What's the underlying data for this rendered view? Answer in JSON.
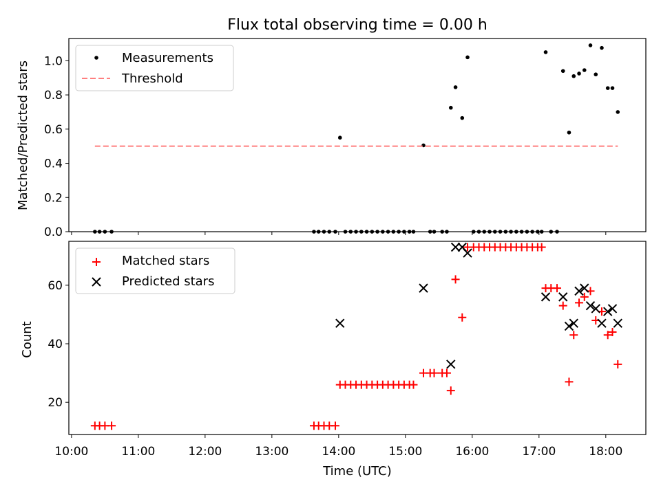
{
  "figure": {
    "title": "Flux total observing time = 0.00 h",
    "xlabel": "Time (UTC)",
    "xticks": [
      {
        "t": 10.0,
        "label": "10:00"
      },
      {
        "t": 11.0,
        "label": "11:00"
      },
      {
        "t": 12.0,
        "label": "12:00"
      },
      {
        "t": 13.0,
        "label": "13:00"
      },
      {
        "t": 14.0,
        "label": "14:00"
      },
      {
        "t": 15.0,
        "label": "15:00"
      },
      {
        "t": 16.0,
        "label": "16:00"
      },
      {
        "t": 17.0,
        "label": "17:00"
      },
      {
        "t": 18.0,
        "label": "18:00"
      }
    ]
  },
  "chart_data": [
    {
      "type": "scatter",
      "ylabel": "Matched/Predicted stars",
      "xlim": [
        9.96,
        18.6
      ],
      "ylim": [
        0,
        1.13
      ],
      "yticks": [
        {
          "v": 0.0,
          "label": "0.0"
        },
        {
          "v": 0.2,
          "label": "0.2"
        },
        {
          "v": 0.4,
          "label": "0.4"
        },
        {
          "v": 0.6,
          "label": "0.6"
        },
        {
          "v": 0.8,
          "label": "0.8"
        },
        {
          "v": 1.0,
          "label": "1.0"
        }
      ],
      "legend_position": "top-left",
      "series": [
        {
          "name": "Measurements",
          "marker": "dot",
          "color": "#000000",
          "x": [
            10.35,
            10.42,
            10.5,
            10.6,
            13.63,
            13.7,
            13.78,
            13.86,
            13.95,
            14.02,
            14.1,
            14.18,
            14.26,
            14.34,
            14.42,
            14.5,
            14.58,
            14.66,
            14.74,
            14.82,
            14.9,
            14.98,
            15.06,
            15.12,
            15.27,
            15.37,
            15.43,
            15.55,
            15.62,
            15.68,
            15.75,
            15.85,
            15.93,
            16.02,
            16.1,
            16.18,
            16.26,
            16.34,
            16.42,
            16.5,
            16.58,
            16.66,
            16.74,
            16.82,
            16.9,
            16.98,
            17.04,
            17.1,
            17.18,
            17.27,
            17.36,
            17.45,
            17.52,
            17.6,
            17.68,
            17.77,
            17.85,
            17.94,
            18.03,
            18.1,
            18.18
          ],
          "y": [
            0,
            0,
            0,
            0,
            0,
            0,
            0,
            0,
            0,
            0.55,
            0,
            0,
            0,
            0,
            0,
            0,
            0,
            0,
            0,
            0,
            0,
            0,
            0,
            0,
            0.505,
            0,
            0,
            0,
            0,
            0.725,
            0.845,
            0.665,
            1.02,
            0,
            0,
            0,
            0,
            0,
            0,
            0,
            0,
            0,
            0,
            0,
            0,
            0,
            0,
            1.05,
            0,
            0,
            0.94,
            0.58,
            0.91,
            0.925,
            0.945,
            1.09,
            0.92,
            1.075,
            0.84,
            0.84,
            0.7
          ]
        },
        {
          "name": "Threshold",
          "line_style": "dashed",
          "color": "#ff7f7f",
          "x": [
            10.35,
            18.18
          ],
          "y": [
            0.5,
            0.5
          ]
        }
      ]
    },
    {
      "type": "scatter",
      "ylabel": "Count",
      "xlim": [
        9.96,
        18.6
      ],
      "ylim": [
        9,
        75
      ],
      "yticks": [
        {
          "v": 20,
          "label": "20"
        },
        {
          "v": 40,
          "label": "40"
        },
        {
          "v": 60,
          "label": "60"
        }
      ],
      "legend_position": "top-left",
      "series": [
        {
          "name": "Matched stars",
          "marker": "plus",
          "color": "#ff0000",
          "x": [
            10.35,
            10.42,
            10.5,
            10.6,
            13.63,
            13.7,
            13.78,
            13.86,
            13.95,
            14.02,
            14.1,
            14.18,
            14.26,
            14.34,
            14.42,
            14.5,
            14.58,
            14.66,
            14.74,
            14.82,
            14.9,
            14.98,
            15.06,
            15.12,
            15.27,
            15.37,
            15.43,
            15.55,
            15.62,
            15.68,
            15.75,
            15.85,
            15.93,
            16.02,
            16.1,
            16.18,
            16.26,
            16.34,
            16.42,
            16.5,
            16.58,
            16.66,
            16.74,
            16.82,
            16.9,
            16.98,
            17.04,
            17.1,
            17.18,
            17.27,
            17.36,
            17.45,
            17.52,
            17.6,
            17.68,
            17.77,
            17.85,
            17.94,
            18.03,
            18.1,
            18.18
          ],
          "y": [
            12,
            12,
            12,
            12,
            12,
            12,
            12,
            12,
            12,
            26,
            26,
            26,
            26,
            26,
            26,
            26,
            26,
            26,
            26,
            26,
            26,
            26,
            26,
            26,
            30,
            30,
            30,
            30,
            30,
            24,
            62,
            49,
            73,
            73,
            73,
            73,
            73,
            73,
            73,
            73,
            73,
            73,
            73,
            73,
            73,
            73,
            73,
            59,
            59,
            59,
            53,
            27,
            43,
            54,
            56,
            58,
            48,
            51,
            43,
            44,
            33
          ]
        },
        {
          "name": "Predicted stars",
          "marker": "x",
          "color": "#000000",
          "x": [
            14.02,
            15.27,
            15.68,
            15.75,
            15.85,
            15.93,
            17.1,
            17.36,
            17.45,
            17.52,
            17.6,
            17.68,
            17.77,
            17.85,
            17.94,
            18.03,
            18.1,
            18.18
          ],
          "y": [
            47,
            59,
            33,
            73,
            73,
            71,
            56,
            56,
            46,
            47,
            58,
            59,
            53,
            52,
            47,
            51,
            52,
            47
          ]
        }
      ]
    }
  ]
}
